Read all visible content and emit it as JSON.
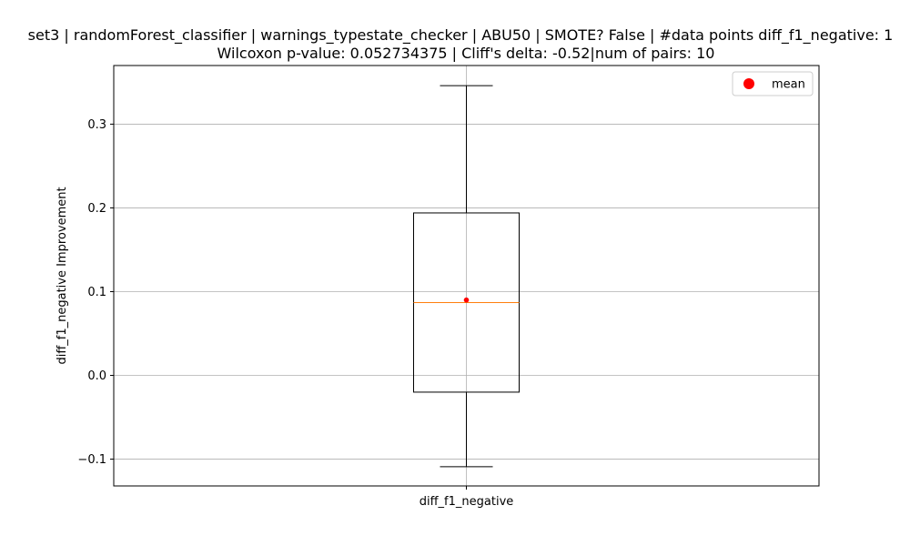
{
  "chart_data": {
    "type": "box",
    "title_lines": [
      "set3 | randomForest_classifier | warnings_typestate_checker | ABU50 | SMOTE? False | #data points diff_f1_negative: 1",
      "Wilcoxon p-value: 0.052734375 | Cliff's delta: -0.52|num of pairs: 10"
    ],
    "xlabel": "",
    "ylabel": "diff_f1_negative Improvement",
    "categories": [
      "diff_f1_negative"
    ],
    "ylim": [
      -0.132,
      0.37
    ],
    "yticks": [
      -0.1,
      0.0,
      0.1,
      0.2,
      0.3
    ],
    "ytick_labels": [
      "−0.1",
      "0.0",
      "0.1",
      "0.2",
      "0.3"
    ],
    "boxes": [
      {
        "name": "diff_f1_negative",
        "whisker_low": -0.109,
        "q1": -0.02,
        "median": 0.087,
        "q3": 0.194,
        "whisker_high": 0.346,
        "mean": 0.09
      }
    ],
    "grid": true,
    "legend": {
      "position": "top-right",
      "entries": [
        {
          "label": "mean",
          "marker": "circle",
          "color": "#ff0000"
        }
      ]
    },
    "colors": {
      "box": "#000000",
      "median": "#ff7f0e",
      "mean": "#ff0000",
      "grid": "#b0b0b0"
    }
  }
}
